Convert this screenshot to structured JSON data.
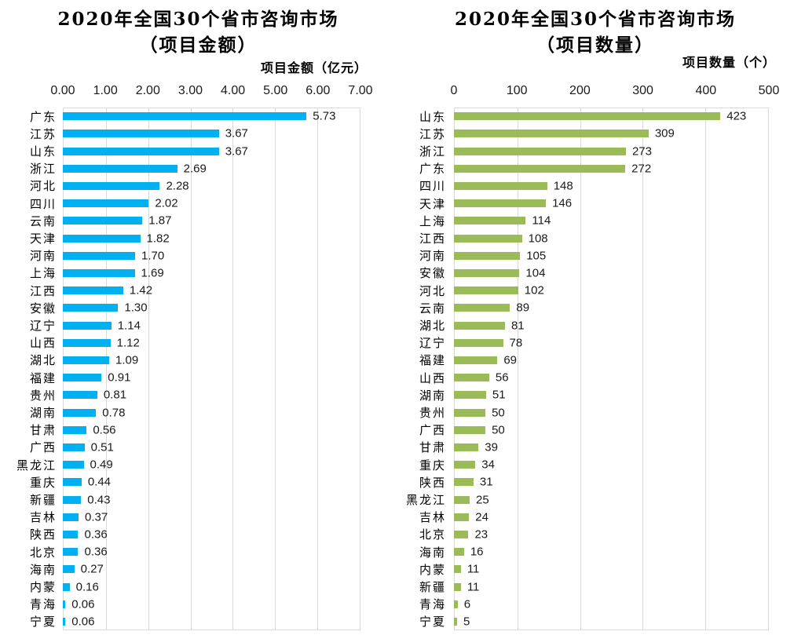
{
  "colors": {
    "amount_bar": "#00B0F0",
    "count_bar": "#9BBB59",
    "grid": "#D9D9D9",
    "text": "#1A1A1A"
  },
  "chart_data": [
    {
      "type": "bar",
      "orientation": "horizontal",
      "title": "2020年全国30个省市咨询市场",
      "subtitle": "（项目金额）",
      "axis_title": "项目金额（亿元）",
      "xlim": [
        0,
        7
      ],
      "tick_labels": [
        "0.00",
        "1.00",
        "2.00",
        "3.00",
        "4.00",
        "5.00",
        "6.00",
        "7.00"
      ],
      "grid": true,
      "bar_color": "#00B0F0",
      "categories": [
        "广东",
        "江苏",
        "山东",
        "浙江",
        "河北",
        "四川",
        "云南",
        "天津",
        "河南",
        "上海",
        "江西",
        "安徽",
        "辽宁",
        "山西",
        "湖北",
        "福建",
        "贵州",
        "湖南",
        "甘肃",
        "广西",
        "黑龙江",
        "重庆",
        "新疆",
        "吉林",
        "陕西",
        "北京",
        "海南",
        "内蒙",
        "青海",
        "宁夏"
      ],
      "values": [
        5.73,
        3.67,
        3.67,
        2.69,
        2.28,
        2.02,
        1.87,
        1.82,
        1.7,
        1.69,
        1.42,
        1.3,
        1.14,
        1.12,
        1.09,
        0.91,
        0.81,
        0.78,
        0.56,
        0.51,
        0.49,
        0.44,
        0.43,
        0.37,
        0.36,
        0.36,
        0.27,
        0.16,
        0.06,
        0.06
      ],
      "value_labels": [
        "5.73",
        "3.67",
        "3.67",
        "2.69",
        "2.28",
        "2.02",
        "1.87",
        "1.82",
        "1.70",
        "1.69",
        "1.42",
        "1.30",
        "1.14",
        "1.12",
        "1.09",
        "0.91",
        "0.81",
        "0.78",
        "0.56",
        "0.51",
        "0.49",
        "0.44",
        "0.43",
        "0.37",
        "0.36",
        "0.36",
        "0.27",
        "0.16",
        "0.06",
        "0.06"
      ]
    },
    {
      "type": "bar",
      "orientation": "horizontal",
      "title": "2020年全国30个省市咨询市场",
      "subtitle": "（项目数量）",
      "axis_title": "项目数量（个）",
      "xlim": [
        0,
        500
      ],
      "tick_labels": [
        "0",
        "100",
        "200",
        "300",
        "400",
        "500"
      ],
      "grid": true,
      "bar_color": "#9BBB59",
      "categories": [
        "山东",
        "江苏",
        "浙江",
        "广东",
        "四川",
        "天津",
        "上海",
        "江西",
        "河南",
        "安徽",
        "河北",
        "云南",
        "湖北",
        "辽宁",
        "福建",
        "山西",
        "湖南",
        "贵州",
        "广西",
        "甘肃",
        "重庆",
        "陕西",
        "黑龙江",
        "吉林",
        "北京",
        "海南",
        "内蒙",
        "新疆",
        "青海",
        "宁夏"
      ],
      "values": [
        423,
        309,
        273,
        272,
        148,
        146,
        114,
        108,
        105,
        104,
        102,
        89,
        81,
        78,
        69,
        56,
        51,
        50,
        50,
        39,
        34,
        31,
        25,
        24,
        23,
        16,
        11,
        11,
        6,
        5
      ],
      "value_labels": [
        "423",
        "309",
        "273",
        "272",
        "148",
        "146",
        "114",
        "108",
        "105",
        "104",
        "102",
        "89",
        "81",
        "78",
        "69",
        "56",
        "51",
        "50",
        "50",
        "39",
        "34",
        "31",
        "25",
        "24",
        "23",
        "16",
        "11",
        "11",
        "6",
        "5"
      ]
    }
  ]
}
